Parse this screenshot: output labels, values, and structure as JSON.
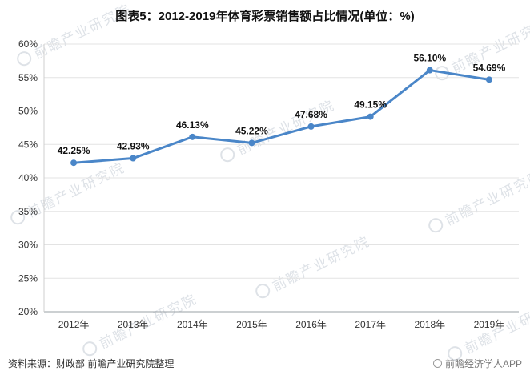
{
  "title": "图表5：2012-2019年体育彩票销售额占比情况(单位：%)",
  "chart_data": {
    "type": "line",
    "title": "图表5：2012-2019年体育彩票销售额占比情况(单位：%)",
    "categories": [
      "2012年",
      "2013年",
      "2014年",
      "2015年",
      "2016年",
      "2017年",
      "2018年",
      "2019年"
    ],
    "values": [
      42.25,
      42.93,
      46.13,
      45.22,
      47.68,
      49.15,
      56.1,
      54.69
    ],
    "point_labels": [
      "42.25%",
      "42.93%",
      "46.13%",
      "45.22%",
      "47.68%",
      "49.15%",
      "56.10%",
      "54.69%"
    ],
    "ylim": [
      20,
      60
    ],
    "ytick_step": 5,
    "ytick_labels": [
      "20%",
      "25%",
      "30%",
      "35%",
      "40%",
      "45%",
      "50%",
      "55%",
      "60%"
    ],
    "xlabel": "",
    "ylabel": "",
    "grid": true,
    "legend": "none",
    "line_color": "#4a86c8"
  },
  "footer": {
    "source": "资料来源：财政部 前瞻产业研究院整理",
    "credit": "前瞻经济学人APP"
  },
  "watermark": {
    "text": "前瞻产业研究院"
  }
}
